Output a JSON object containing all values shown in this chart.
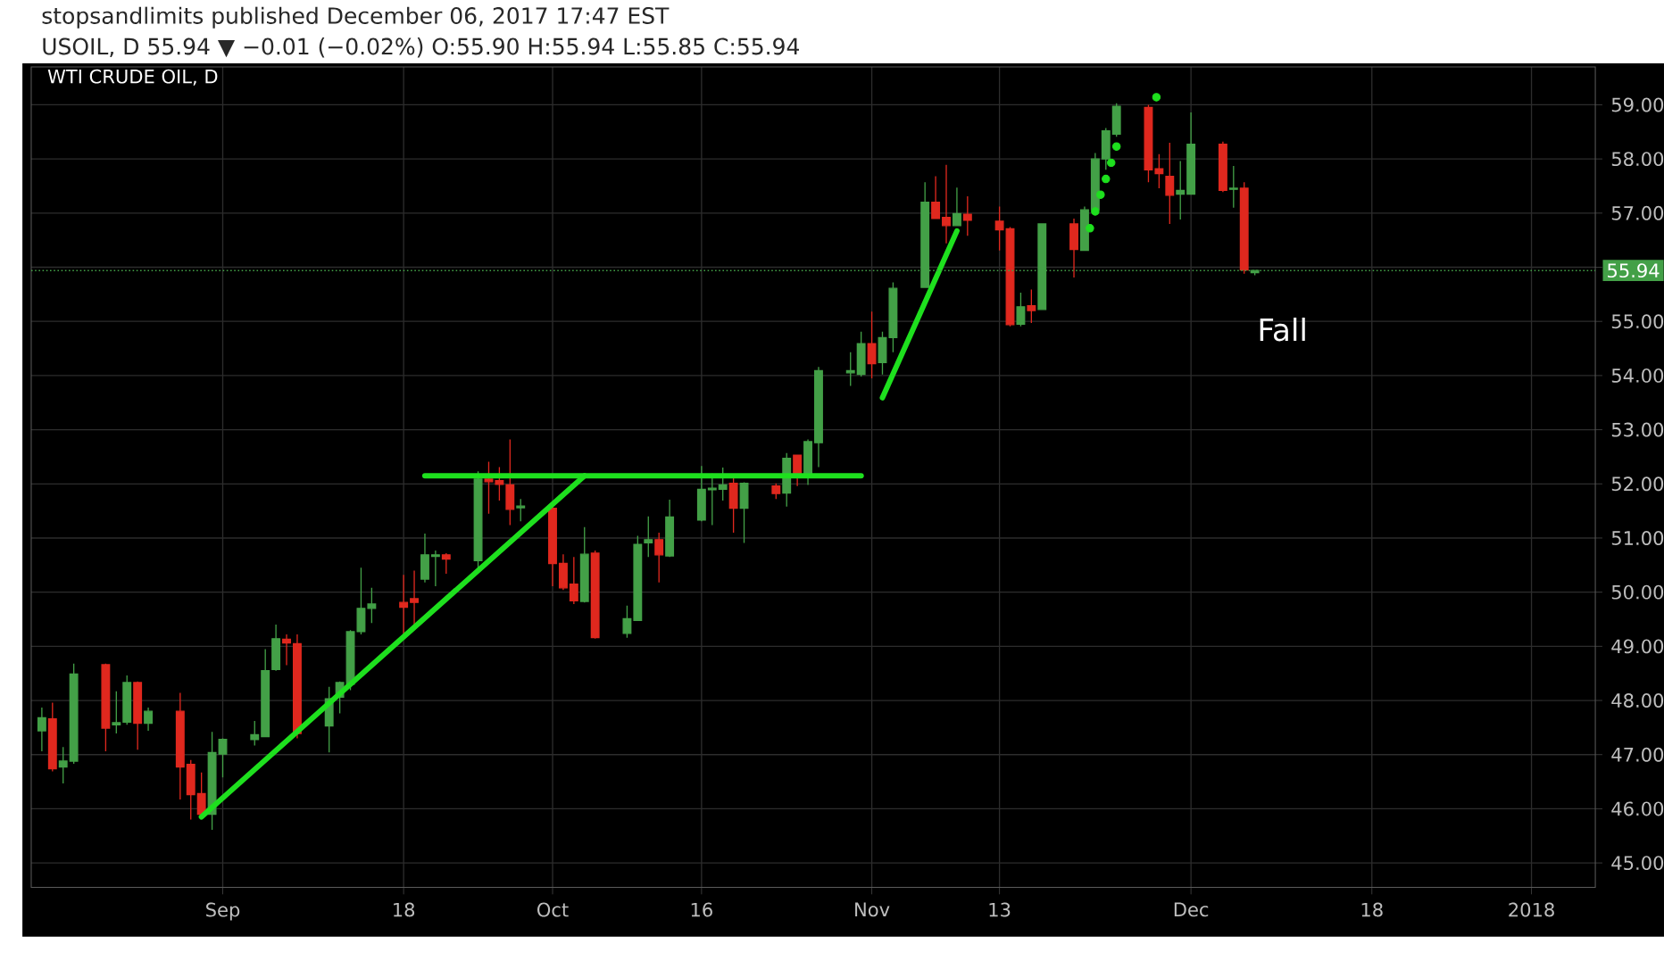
{
  "chart_data": {
    "type": "candlestick",
    "title": "WTI CRUDE OIL, D",
    "annotations": [
      "stopsandlimits published December 06, 2017 17:47 EST",
      "USOIL, D 55.94 ▼ −0.01 (−0.02%) O:55.90 H:55.94 L:55.85 C:55.94",
      "Fall"
    ],
    "x": [
      "2017-08-15",
      "2017-08-16",
      "2017-08-17",
      "2017-08-18",
      "2017-08-21",
      "2017-08-22",
      "2017-08-23",
      "2017-08-24",
      "2017-08-25",
      "2017-08-28",
      "2017-08-29",
      "2017-08-30",
      "2017-08-31",
      "2017-09-01",
      "2017-09-04",
      "2017-09-05",
      "2017-09-06",
      "2017-09-07",
      "2017-09-08",
      "2017-09-11",
      "2017-09-12",
      "2017-09-13",
      "2017-09-14",
      "2017-09-15",
      "2017-09-18",
      "2017-09-19",
      "2017-09-20",
      "2017-09-21",
      "2017-09-22",
      "2017-09-25",
      "2017-09-26",
      "2017-09-27",
      "2017-09-28",
      "2017-09-29",
      "2017-10-02",
      "2017-10-03",
      "2017-10-04",
      "2017-10-05",
      "2017-10-06",
      "2017-10-09",
      "2017-10-10",
      "2017-10-11",
      "2017-10-12",
      "2017-10-13",
      "2017-10-16",
      "2017-10-17",
      "2017-10-18",
      "2017-10-19",
      "2017-10-20",
      "2017-10-23",
      "2017-10-24",
      "2017-10-25",
      "2017-10-26",
      "2017-10-27",
      "2017-10-30",
      "2017-10-31",
      "2017-11-01",
      "2017-11-02",
      "2017-11-03",
      "2017-11-06",
      "2017-11-07",
      "2017-11-08",
      "2017-11-09",
      "2017-11-10",
      "2017-11-13",
      "2017-11-14",
      "2017-11-15",
      "2017-11-16",
      "2017-11-17",
      "2017-11-20",
      "2017-11-21",
      "2017-11-22",
      "2017-11-23",
      "2017-11-24",
      "2017-11-27",
      "2017-11-28",
      "2017-11-29",
      "2017-11-30",
      "2017-12-01",
      "2017-12-04",
      "2017-12-05",
      "2017-12-06",
      "2017-12-07"
    ],
    "ohlc": [
      [
        47.44,
        47.87,
        47.06,
        47.68
      ],
      [
        47.66,
        47.96,
        46.69,
        46.74
      ],
      [
        46.77,
        47.14,
        46.47,
        46.88
      ],
      [
        46.88,
        48.68,
        46.83,
        48.49
      ],
      [
        48.66,
        48.68,
        47.06,
        47.49
      ],
      [
        47.55,
        48.17,
        47.39,
        47.59
      ],
      [
        47.6,
        48.46,
        47.55,
        48.33
      ],
      [
        48.33,
        48.35,
        47.09,
        47.58
      ],
      [
        47.58,
        47.87,
        47.44,
        47.8
      ],
      [
        47.8,
        48.14,
        46.17,
        46.77
      ],
      [
        46.82,
        46.9,
        45.8,
        46.26
      ],
      [
        46.28,
        46.67,
        45.83,
        45.9
      ],
      [
        45.9,
        47.42,
        45.61,
        47.04
      ],
      [
        47.01,
        47.3,
        46.58,
        47.28
      ],
      [
        47.28,
        47.62,
        47.17,
        47.37
      ],
      [
        47.33,
        48.95,
        47.33,
        48.55
      ],
      [
        48.57,
        49.4,
        48.55,
        49.14
      ],
      [
        49.13,
        49.22,
        48.65,
        49.06
      ],
      [
        49.05,
        49.22,
        47.3,
        47.39
      ],
      [
        47.53,
        48.25,
        47.04,
        48.03
      ],
      [
        48.06,
        48.35,
        47.76,
        48.33
      ],
      [
        48.3,
        49.3,
        48.19,
        49.27
      ],
      [
        49.27,
        50.45,
        49.22,
        49.7
      ],
      [
        49.7,
        50.08,
        49.43,
        49.78
      ],
      [
        49.81,
        50.32,
        49.22,
        49.72
      ],
      [
        49.88,
        50.4,
        49.38,
        49.81
      ],
      [
        50.24,
        51.08,
        50.18,
        50.69
      ],
      [
        50.66,
        50.77,
        50.11,
        50.69
      ],
      [
        50.69,
        50.72,
        50.34,
        50.61
      ],
      [
        50.58,
        52.23,
        50.42,
        52.09
      ],
      [
        52.09,
        52.41,
        51.45,
        52.04
      ],
      [
        52.06,
        52.31,
        51.69,
        51.99
      ],
      [
        51.98,
        52.82,
        51.24,
        51.53
      ],
      [
        51.56,
        51.72,
        51.31,
        51.59
      ],
      [
        51.55,
        51.66,
        50.11,
        50.53
      ],
      [
        50.53,
        50.7,
        50.04,
        50.08
      ],
      [
        50.15,
        50.65,
        49.78,
        49.84
      ],
      [
        49.83,
        51.2,
        49.81,
        50.7
      ],
      [
        50.72,
        50.77,
        49.14,
        49.16
      ],
      [
        49.24,
        49.75,
        49.16,
        49.51
      ],
      [
        49.48,
        51.04,
        49.48,
        50.88
      ],
      [
        50.91,
        51.4,
        50.65,
        50.97
      ],
      [
        50.97,
        51.1,
        50.18,
        50.69
      ],
      [
        50.67,
        51.71,
        50.65,
        51.39
      ],
      [
        51.33,
        52.33,
        51.31,
        51.9
      ],
      [
        51.89,
        52.19,
        51.24,
        51.92
      ],
      [
        51.9,
        52.3,
        51.69,
        51.98
      ],
      [
        52.01,
        52.12,
        51.1,
        51.55
      ],
      [
        51.55,
        52.03,
        50.91,
        52.01
      ],
      [
        51.96,
        52.01,
        51.72,
        51.82
      ],
      [
        51.83,
        52.57,
        51.58,
        52.47
      ],
      [
        52.53,
        52.53,
        51.96,
        52.15
      ],
      [
        52.15,
        52.82,
        51.98,
        52.78
      ],
      [
        52.76,
        54.16,
        52.31,
        54.09
      ],
      [
        54.05,
        54.43,
        53.81,
        54.09
      ],
      [
        54.02,
        54.81,
        53.98,
        54.59
      ],
      [
        54.59,
        55.18,
        53.95,
        54.22
      ],
      [
        54.24,
        54.81,
        54.02,
        54.7
      ],
      [
        54.7,
        55.72,
        54.43,
        55.61
      ],
      [
        55.63,
        57.57,
        55.63,
        57.2
      ],
      [
        57.2,
        57.68,
        56.9,
        56.9
      ],
      [
        56.92,
        57.89,
        56.44,
        56.77
      ],
      [
        56.77,
        57.47,
        56.77,
        56.99
      ],
      [
        56.98,
        57.31,
        56.58,
        56.87
      ],
      [
        56.85,
        57.12,
        56.31,
        56.69
      ],
      [
        56.71,
        56.74,
        54.91,
        54.94
      ],
      [
        54.95,
        55.53,
        54.91,
        55.27
      ],
      [
        55.29,
        55.59,
        54.97,
        55.2
      ],
      [
        55.22,
        56.8,
        55.22,
        56.8
      ],
      [
        56.8,
        56.9,
        55.81,
        56.33
      ],
      [
        56.31,
        57.12,
        56.31,
        57.06
      ],
      [
        57.06,
        58.11,
        57.05,
        58.0
      ],
      [
        58.0,
        58.57,
        57.8,
        58.52
      ],
      [
        58.46,
        59.03,
        58.41,
        58.97
      ],
      [
        58.95,
        59.0,
        57.57,
        57.8
      ],
      [
        57.82,
        58.09,
        57.46,
        57.73
      ],
      [
        57.68,
        58.3,
        56.8,
        57.33
      ],
      [
        57.35,
        57.96,
        56.88,
        57.42
      ],
      [
        57.35,
        58.86,
        57.35,
        58.27
      ],
      [
        58.27,
        58.32,
        57.39,
        57.42
      ],
      [
        57.44,
        57.87,
        57.1,
        57.46
      ],
      [
        57.46,
        57.57,
        55.88,
        55.95
      ],
      [
        55.9,
        55.94,
        55.85,
        55.94
      ]
    ],
    "colors": [
      "#43a047",
      "#e0281e",
      "#43a047",
      "#43a047",
      "#e0281e",
      "#43a047",
      "#43a047",
      "#e0281e",
      "#43a047",
      "#e0281e",
      "#e0281e",
      "#e0281e",
      "#43a047",
      "#43a047",
      "#43a047",
      "#43a047",
      "#43a047",
      "#e0281e",
      "#e0281e",
      "#43a047",
      "#43a047",
      "#43a047",
      "#43a047",
      "#43a047",
      "#e0281e",
      "#e0281e",
      "#43a047",
      "#43a047",
      "#e0281e",
      "#43a047",
      "#e0281e",
      "#e0281e",
      "#e0281e",
      "#43a047",
      "#e0281e",
      "#e0281e",
      "#e0281e",
      "#43a047",
      "#e0281e",
      "#43a047",
      "#43a047",
      "#43a047",
      "#e0281e",
      "#43a047",
      "#43a047",
      "#43a047",
      "#43a047",
      "#e0281e",
      "#43a047",
      "#e0281e",
      "#43a047",
      "#e0281e",
      "#43a047",
      "#43a047",
      "#43a047",
      "#43a047",
      "#e0281e",
      "#43a047",
      "#43a047",
      "#43a047",
      "#e0281e",
      "#e0281e",
      "#43a047",
      "#e0281e",
      "#e0281e",
      "#e0281e",
      "#43a047",
      "#e0281e",
      "#43a047",
      "#e0281e",
      "#43a047",
      "#43a047",
      "#43a047",
      "#43a047",
      "#e0281e",
      "#e0281e",
      "#e0281e",
      "#43a047",
      "#43a047",
      "#e0281e",
      "#43a047",
      "#e0281e",
      "#43a047"
    ],
    "series": [
      {
        "type": "line",
        "color": "#1ee01e",
        "x": [
          "2017-08-30",
          "2017-10-05"
        ],
        "values": [
          45.85,
          52.15
        ]
      },
      {
        "type": "line",
        "color": "#1ee01e",
        "x": [
          "2017-09-20",
          "2017-10-31"
        ],
        "values": [
          52.15,
          52.15
        ]
      },
      {
        "type": "line",
        "color": "#1ee01e",
        "x": [
          "2017-11-02",
          "2017-11-09"
        ],
        "values": [
          53.59,
          56.67
        ]
      },
      {
        "type": "scatter",
        "color": "#1ee01e",
        "marker": "circle",
        "x": [
          "2017-11-21T12:00",
          "2017-11-22",
          "2017-11-22T12:00",
          "2017-11-23",
          "2017-11-23T12:00",
          "2017-11-24",
          "2017-11-27T18:00"
        ],
        "values": [
          56.72,
          57.03,
          57.34,
          57.63,
          57.93,
          58.23,
          59.14
        ]
      }
    ],
    "ref_lines": [
      {
        "axis": "y",
        "value": 55.94,
        "label": "55.94",
        "color": "#43a047",
        "line_style": "dotted"
      }
    ],
    "xlim": [
      "2017-08-14",
      "2018-01-08"
    ],
    "xticks": [
      {
        "value": "2017-09-01",
        "label": "Sep"
      },
      {
        "value": "2017-09-18",
        "label": "18"
      },
      {
        "value": "2017-10-02",
        "label": "Oct"
      },
      {
        "value": "2017-10-16",
        "label": "16"
      },
      {
        "value": "2017-11-01",
        "label": "Nov"
      },
      {
        "value": "2017-11-13",
        "label": "13"
      },
      {
        "value": "2017-12-01",
        "label": "Dec"
      },
      {
        "value": "2017-12-18",
        "label": "18"
      },
      {
        "value": "2018-01-02",
        "label": "2018"
      }
    ],
    "ylim": [
      44.55,
      59.7
    ],
    "yticks": [
      {
        "value": 45,
        "label": "45.00"
      },
      {
        "value": 46,
        "label": "46.00"
      },
      {
        "value": 47,
        "label": "47.00"
      },
      {
        "value": 48,
        "label": "48.00"
      },
      {
        "value": 49,
        "label": "49.00"
      },
      {
        "value": 50,
        "label": "50.00"
      },
      {
        "value": 51,
        "label": "51.00"
      },
      {
        "value": 52,
        "label": "52.00"
      },
      {
        "value": 53,
        "label": "53.00"
      },
      {
        "value": 54,
        "label": "54.00"
      },
      {
        "value": 55,
        "label": "55.00"
      },
      {
        "value": 56,
        "label": null
      },
      {
        "value": 57,
        "label": "57.00"
      },
      {
        "value": 58,
        "label": "58.00"
      },
      {
        "value": 59,
        "label": "59.00"
      }
    ],
    "grid": true
  }
}
